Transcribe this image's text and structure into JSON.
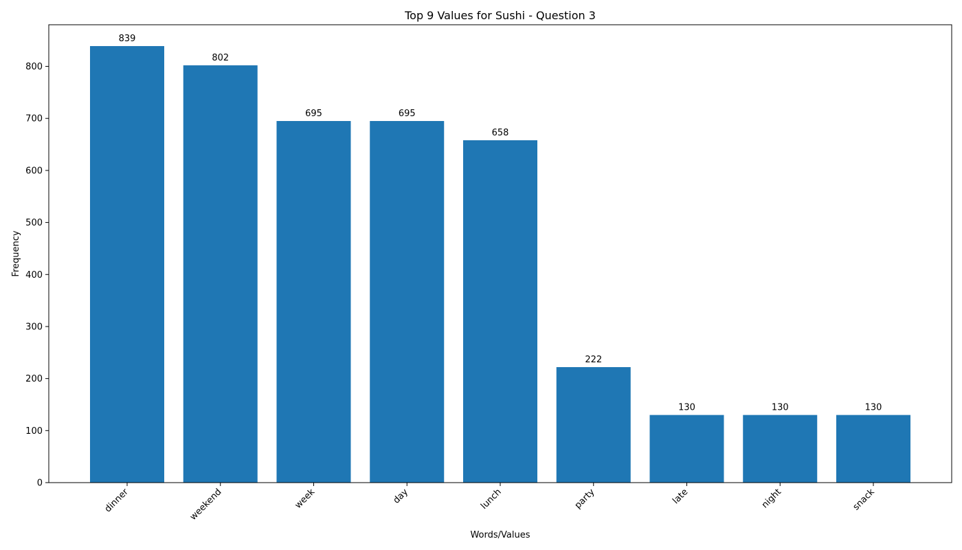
{
  "chart_data": {
    "type": "bar",
    "title": "Top 9 Values for Sushi - Question 3",
    "xlabel": "Words/Values",
    "ylabel": "Frequency",
    "categories": [
      "dinner",
      "weekend",
      "week",
      "day",
      "lunch",
      "party",
      "late",
      "night",
      "snack"
    ],
    "values": [
      839,
      802,
      695,
      695,
      658,
      222,
      130,
      130,
      130
    ],
    "ylim": [
      0,
      880
    ],
    "yticks": [
      0,
      100,
      200,
      300,
      400,
      500,
      600,
      700,
      800
    ],
    "bar_color": "#1f77b4",
    "grid": false,
    "legend": false
  }
}
